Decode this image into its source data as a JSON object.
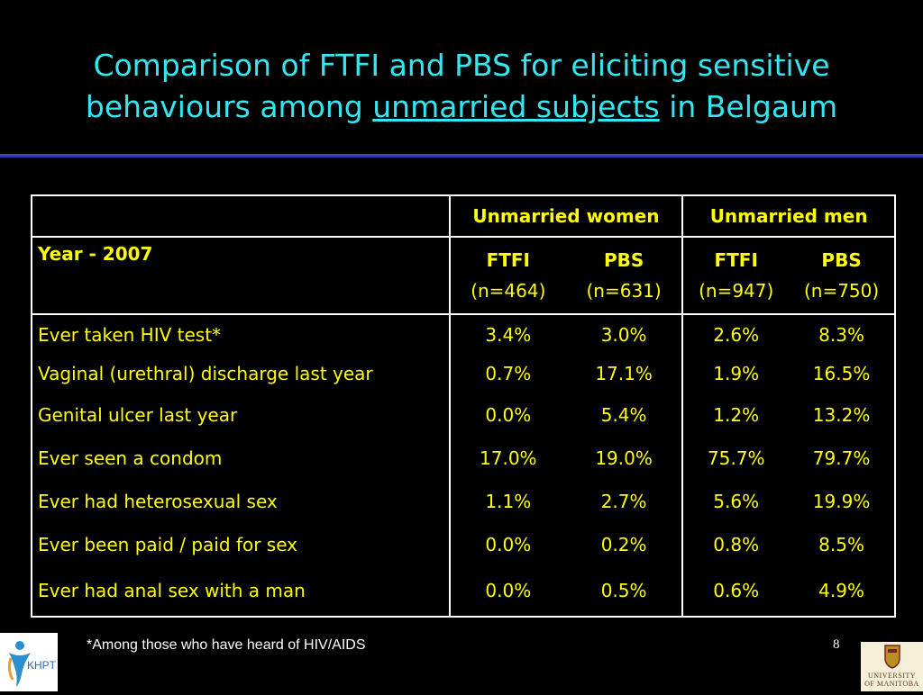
{
  "title": {
    "line1": "Comparison of FTFI and PBS for eliciting sensitive",
    "line2_pre": "behaviours among ",
    "line2_underlined": "unmarried subjects",
    "line2_post": " in Belgaum"
  },
  "table": {
    "group_headers": [
      "Unmarried women",
      "Unmarried men"
    ],
    "year_label": "Year - 2007",
    "methods": [
      {
        "name": "FTFI",
        "n": "(n=464)"
      },
      {
        "name": "PBS",
        "n": "(n=631)"
      },
      {
        "name": "FTFI",
        "n": "(n=947)"
      },
      {
        "name": "PBS",
        "n": "(n=750)"
      }
    ],
    "rows": [
      {
        "label": "Ever taken HIV test*",
        "values": [
          "3.4%",
          "3.0%",
          "2.6%",
          "8.3%"
        ]
      },
      {
        "label": "Vaginal (urethral) discharge last year",
        "values": [
          "0.7%",
          "17.1%",
          "1.9%",
          "16.5%"
        ]
      },
      {
        "label": "Genital ulcer last year",
        "values": [
          "0.0%",
          "5.4%",
          "1.2%",
          "13.2%"
        ]
      },
      {
        "label": "Ever seen a condom",
        "values": [
          "17.0%",
          "19.0%",
          "75.7%",
          "79.7%"
        ]
      },
      {
        "label": "Ever had heterosexual sex",
        "values": [
          "1.1%",
          "2.7%",
          "5.6%",
          "19.9%"
        ]
      },
      {
        "label": "Ever been paid / paid for sex",
        "values": [
          "0.0%",
          "0.2%",
          "0.8%",
          "8.5%"
        ]
      },
      {
        "label": "Ever had anal sex with a man",
        "values": [
          "0.0%",
          "0.5%",
          "0.6%",
          "4.9%"
        ]
      }
    ]
  },
  "footnote": "*Among those who have  heard of HIV/AIDS",
  "page_number": "8",
  "logos": {
    "left": "KHPT",
    "right_line1": "University",
    "right_line2": "of Manitoba"
  },
  "colors": {
    "title": "#33e6f0",
    "table_text": "#ffff00",
    "background": "#000000",
    "rule": "#3a3ac0"
  }
}
